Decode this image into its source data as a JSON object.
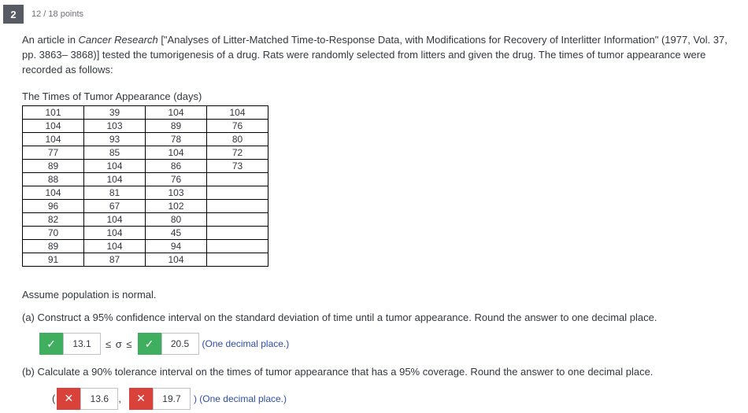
{
  "header": {
    "question_number": "2",
    "points": "12 / 18 points"
  },
  "prompt": {
    "lead": "An article in ",
    "journal": "Cancer Research",
    "citation": " [\"Analyses of Litter-Matched Time-to-Response Data, with Modifications for Recovery of Interlitter Information\" (1977, Vol. 37, pp. 3863– 3868)] tested the tumorigenesis of a drug. Rats were randomly selected from litters and given the drug. The times of tumor appearance were recorded as follows:"
  },
  "table": {
    "title": "The Times of Tumor Appearance (days)",
    "rows": [
      [
        "101",
        "39",
        "104",
        "104"
      ],
      [
        "104",
        "103",
        "89",
        "76"
      ],
      [
        "104",
        "93",
        "78",
        "80"
      ],
      [
        "77",
        "85",
        "104",
        "72"
      ],
      [
        "89",
        "104",
        "86",
        "73"
      ],
      [
        "88",
        "104",
        "76",
        ""
      ],
      [
        "104",
        "81",
        "103",
        ""
      ],
      [
        "96",
        "67",
        "102",
        ""
      ],
      [
        "82",
        "104",
        "80",
        ""
      ],
      [
        "70",
        "104",
        "45",
        ""
      ],
      [
        "89",
        "104",
        "94",
        ""
      ],
      [
        "91",
        "87",
        "104",
        ""
      ]
    ]
  },
  "assume": "Assume population is normal.",
  "part_a": {
    "text": "(a) Construct a 95% confidence interval on the standard deviation of time until a tumor appearance. Round the answer to one decimal place.",
    "lower": "13.1",
    "upper": "20.5",
    "op": "≤ σ ≤",
    "hint": "(One decimal place.)",
    "lower_correct": true,
    "upper_correct": true
  },
  "part_b": {
    "text": "(b) Calculate a 90% tolerance interval on the times of tumor appearance that has a 95% coverage. Round the answer to one decimal place.",
    "lower": "13.6",
    "upper": "19.7",
    "hint": ") (One decimal place.)",
    "lower_correct": false,
    "upper_correct": false
  },
  "icons": {
    "check": "✓",
    "cross": "✕"
  },
  "symbols": {
    "open_paren": "(",
    "comma": ","
  }
}
